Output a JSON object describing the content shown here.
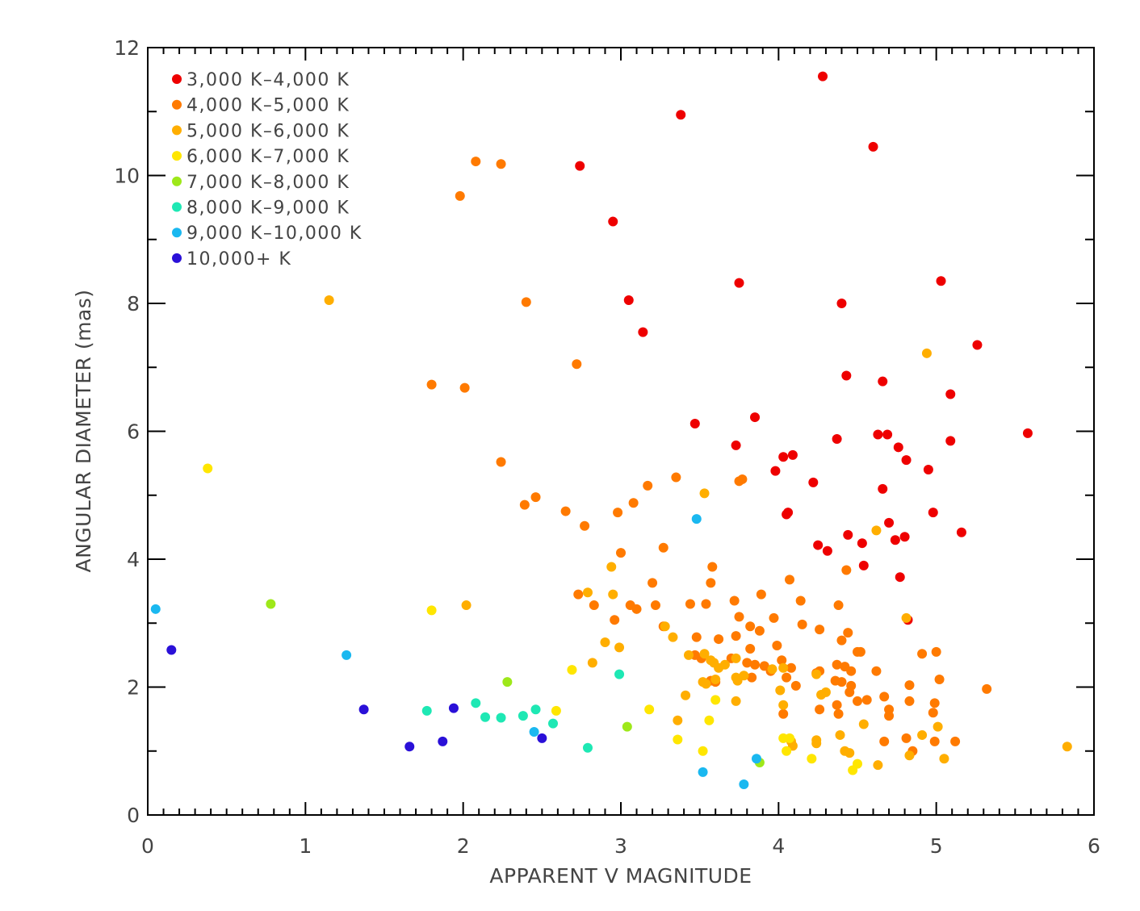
{
  "chart_data": {
    "type": "scatter",
    "xlabel": "APPARENT V MAGNITUDE",
    "ylabel": "ANGULAR DIAMETER (mas)",
    "xlim": [
      0,
      6
    ],
    "ylim": [
      0,
      12
    ],
    "x_ticks": [
      "0",
      "1",
      "2",
      "3",
      "4",
      "5",
      "6"
    ],
    "y_ticks": [
      "0",
      "2",
      "4",
      "6",
      "8",
      "10",
      "12"
    ],
    "grid": false,
    "legend_position": "top-left",
    "series": [
      {
        "name": "3,000 K–4,000 K",
        "color": "#ee0000",
        "points": [
          [
            4.28,
            11.55
          ],
          [
            3.38,
            10.95
          ],
          [
            4.6,
            10.45
          ],
          [
            2.74,
            10.15
          ],
          [
            2.95,
            9.28
          ],
          [
            3.05,
            8.05
          ],
          [
            3.75,
            8.32
          ],
          [
            5.03,
            8.35
          ],
          [
            4.4,
            8.0
          ],
          [
            3.14,
            7.55
          ],
          [
            5.26,
            7.35
          ],
          [
            4.43,
            6.87
          ],
          [
            4.66,
            6.78
          ],
          [
            5.09,
            6.58
          ],
          [
            3.47,
            6.12
          ],
          [
            3.85,
            6.22
          ],
          [
            3.73,
            5.78
          ],
          [
            4.37,
            5.88
          ],
          [
            4.63,
            5.95
          ],
          [
            4.69,
            5.95
          ],
          [
            4.76,
            5.75
          ],
          [
            5.09,
            5.85
          ],
          [
            5.58,
            5.97
          ],
          [
            4.03,
            5.6
          ],
          [
            4.09,
            5.63
          ],
          [
            3.98,
            5.38
          ],
          [
            4.22,
            5.2
          ],
          [
            4.81,
            5.55
          ],
          [
            4.95,
            5.4
          ],
          [
            4.66,
            5.1
          ],
          [
            4.05,
            4.7
          ],
          [
            4.06,
            4.73
          ],
          [
            4.98,
            4.73
          ],
          [
            4.7,
            4.57
          ],
          [
            4.44,
            4.38
          ],
          [
            4.8,
            4.35
          ],
          [
            4.74,
            4.3
          ],
          [
            5.16,
            4.42
          ],
          [
            4.25,
            4.22
          ],
          [
            4.31,
            4.13
          ],
          [
            4.53,
            4.25
          ],
          [
            4.54,
            3.9
          ],
          [
            4.77,
            3.72
          ],
          [
            4.82,
            3.05
          ]
        ]
      },
      {
        "name": "4,000 K–5,000 K",
        "color": "#ff7a00",
        "points": [
          [
            2.08,
            10.22
          ],
          [
            2.24,
            10.18
          ],
          [
            1.98,
            9.68
          ],
          [
            2.4,
            8.02
          ],
          [
            2.72,
            7.05
          ],
          [
            1.8,
            6.73
          ],
          [
            2.01,
            6.68
          ],
          [
            2.24,
            5.52
          ],
          [
            3.35,
            5.28
          ],
          [
            3.17,
            5.15
          ],
          [
            3.77,
            5.25
          ],
          [
            3.75,
            5.22
          ],
          [
            2.46,
            4.97
          ],
          [
            2.39,
            4.85
          ],
          [
            3.08,
            4.88
          ],
          [
            2.65,
            4.75
          ],
          [
            2.98,
            4.73
          ],
          [
            2.77,
            4.52
          ],
          [
            3.27,
            4.18
          ],
          [
            3.0,
            4.1
          ],
          [
            3.58,
            3.88
          ],
          [
            3.57,
            3.63
          ],
          [
            3.2,
            3.63
          ],
          [
            4.07,
            3.68
          ],
          [
            4.43,
            3.83
          ],
          [
            2.73,
            3.45
          ],
          [
            2.83,
            3.28
          ],
          [
            3.06,
            3.28
          ],
          [
            3.1,
            3.22
          ],
          [
            3.22,
            3.28
          ],
          [
            3.44,
            3.3
          ],
          [
            3.54,
            3.3
          ],
          [
            3.72,
            3.35
          ],
          [
            3.89,
            3.45
          ],
          [
            4.14,
            3.35
          ],
          [
            4.38,
            3.28
          ],
          [
            2.96,
            3.05
          ],
          [
            3.75,
            3.1
          ],
          [
            3.27,
            2.95
          ],
          [
            3.82,
            2.95
          ],
          [
            3.97,
            3.08
          ],
          [
            4.15,
            2.98
          ],
          [
            4.26,
            2.9
          ],
          [
            4.4,
            2.73
          ],
          [
            4.44,
            2.85
          ],
          [
            3.48,
            2.78
          ],
          [
            3.62,
            2.75
          ],
          [
            3.73,
            2.8
          ],
          [
            3.82,
            2.6
          ],
          [
            3.88,
            2.88
          ],
          [
            3.99,
            2.65
          ],
          [
            4.5,
            2.55
          ],
          [
            4.52,
            2.55
          ],
          [
            4.91,
            2.52
          ],
          [
            5.0,
            2.55
          ],
          [
            3.47,
            2.5
          ],
          [
            3.51,
            2.45
          ],
          [
            3.7,
            2.45
          ],
          [
            3.8,
            2.38
          ],
          [
            3.85,
            2.35
          ],
          [
            3.91,
            2.33
          ],
          [
            3.95,
            2.25
          ],
          [
            4.02,
            2.42
          ],
          [
            4.08,
            2.3
          ],
          [
            4.24,
            2.22
          ],
          [
            4.26,
            2.25
          ],
          [
            4.37,
            2.35
          ],
          [
            4.42,
            2.32
          ],
          [
            4.46,
            2.25
          ],
          [
            4.62,
            2.25
          ],
          [
            3.57,
            2.1
          ],
          [
            3.6,
            2.08
          ],
          [
            3.83,
            2.15
          ],
          [
            4.05,
            2.15
          ],
          [
            4.11,
            2.02
          ],
          [
            4.36,
            2.1
          ],
          [
            4.4,
            2.08
          ],
          [
            4.46,
            2.02
          ],
          [
            4.45,
            1.92
          ],
          [
            4.67,
            1.85
          ],
          [
            4.5,
            1.78
          ],
          [
            4.56,
            1.8
          ],
          [
            4.83,
            2.03
          ],
          [
            5.02,
            2.12
          ],
          [
            5.32,
            1.97
          ],
          [
            4.83,
            1.78
          ],
          [
            4.99,
            1.75
          ],
          [
            4.26,
            1.65
          ],
          [
            4.37,
            1.72
          ],
          [
            4.7,
            1.65
          ],
          [
            4.7,
            1.55
          ],
          [
            4.98,
            1.6
          ],
          [
            4.03,
            1.58
          ],
          [
            4.38,
            1.58
          ],
          [
            4.67,
            1.15
          ],
          [
            4.81,
            1.2
          ],
          [
            4.99,
            1.15
          ],
          [
            5.12,
            1.15
          ],
          [
            4.85,
            1.0
          ]
        ]
      },
      {
        "name": "5,000 K–6,000 K",
        "color": "#ffae00",
        "points": [
          [
            1.15,
            8.05
          ],
          [
            4.94,
            7.22
          ],
          [
            3.53,
            5.03
          ],
          [
            4.62,
            4.45
          ],
          [
            2.94,
            3.88
          ],
          [
            2.79,
            3.48
          ],
          [
            2.95,
            3.45
          ],
          [
            2.02,
            3.28
          ],
          [
            3.28,
            2.95
          ],
          [
            3.33,
            2.78
          ],
          [
            2.9,
            2.7
          ],
          [
            2.99,
            2.62
          ],
          [
            3.73,
            2.45
          ],
          [
            3.53,
            2.52
          ],
          [
            3.57,
            2.42
          ],
          [
            3.59,
            2.38
          ],
          [
            3.62,
            2.3
          ],
          [
            3.66,
            2.35
          ],
          [
            3.78,
            2.18
          ],
          [
            3.73,
            2.15
          ],
          [
            3.96,
            2.28
          ],
          [
            4.03,
            2.3
          ],
          [
            4.24,
            2.2
          ],
          [
            2.82,
            2.38
          ],
          [
            3.43,
            2.5
          ],
          [
            3.54,
            2.05
          ],
          [
            3.52,
            2.08
          ],
          [
            3.6,
            2.12
          ],
          [
            3.74,
            2.1
          ],
          [
            4.01,
            1.95
          ],
          [
            4.27,
            1.88
          ],
          [
            4.3,
            1.92
          ],
          [
            3.41,
            1.87
          ],
          [
            3.73,
            1.78
          ],
          [
            4.81,
            3.08
          ],
          [
            3.36,
            1.48
          ],
          [
            4.54,
            1.42
          ],
          [
            4.39,
            1.25
          ],
          [
            4.91,
            1.25
          ],
          [
            5.01,
            1.38
          ],
          [
            4.24,
            1.12
          ],
          [
            4.24,
            1.17
          ],
          [
            4.08,
            1.15
          ],
          [
            4.09,
            1.08
          ],
          [
            4.42,
            1.0
          ],
          [
            4.45,
            0.97
          ],
          [
            4.63,
            0.78
          ],
          [
            4.83,
            0.93
          ],
          [
            5.05,
            0.88
          ],
          [
            5.83,
            1.07
          ],
          [
            4.03,
            1.72
          ]
        ]
      },
      {
        "name": "6,000 K–7,000 K",
        "color": "#ffe600",
        "points": [
          [
            0.38,
            5.42
          ],
          [
            1.8,
            3.2
          ],
          [
            2.69,
            2.27
          ],
          [
            2.59,
            1.63
          ],
          [
            3.18,
            1.65
          ],
          [
            3.6,
            1.8
          ],
          [
            3.56,
            1.48
          ],
          [
            3.36,
            1.18
          ],
          [
            3.52,
            1.0
          ],
          [
            4.03,
            1.2
          ],
          [
            4.07,
            1.2
          ],
          [
            4.05,
            1.0
          ],
          [
            4.21,
            0.88
          ],
          [
            4.5,
            0.8
          ],
          [
            4.47,
            0.7
          ]
        ]
      },
      {
        "name": "7,000 K–8,000 K",
        "color": "#9ee81a",
        "points": [
          [
            0.78,
            3.3
          ],
          [
            2.28,
            2.08
          ],
          [
            3.04,
            1.38
          ],
          [
            3.88,
            0.82
          ]
        ]
      },
      {
        "name": "8,000 K–9,000 K",
        "color": "#1ee8b4",
        "points": [
          [
            1.77,
            1.63
          ],
          [
            2.08,
            1.75
          ],
          [
            2.14,
            1.53
          ],
          [
            2.24,
            1.52
          ],
          [
            2.38,
            1.55
          ],
          [
            2.46,
            1.65
          ],
          [
            2.57,
            1.43
          ],
          [
            2.79,
            1.05
          ],
          [
            2.99,
            2.2
          ]
        ]
      },
      {
        "name": "9,000 K–10,000 K",
        "color": "#1ab8f0",
        "points": [
          [
            0.05,
            3.22
          ],
          [
            1.26,
            2.5
          ],
          [
            2.45,
            1.3
          ],
          [
            3.48,
            4.63
          ],
          [
            3.52,
            0.67
          ],
          [
            3.78,
            0.48
          ],
          [
            3.86,
            0.88
          ]
        ]
      },
      {
        "name": "10,000+ K",
        "color": "#2a10d8",
        "points": [
          [
            0.15,
            2.58
          ],
          [
            1.37,
            1.65
          ],
          [
            1.66,
            1.07
          ],
          [
            1.87,
            1.15
          ],
          [
            1.94,
            1.67
          ],
          [
            2.5,
            1.2
          ]
        ]
      }
    ]
  }
}
